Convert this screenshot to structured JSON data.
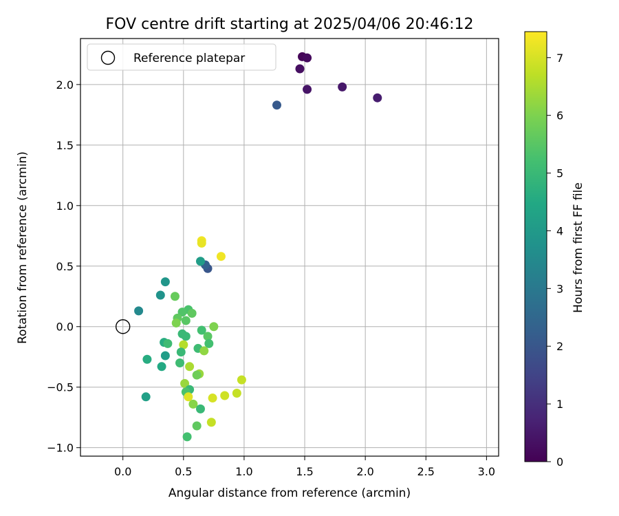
{
  "chart_data": {
    "type": "scatter",
    "title": "FOV centre drift starting at 2025/04/06 20:46:12",
    "xlabel": "Angular distance from reference (arcmin)",
    "ylabel": "Rotation from reference (arcmin)",
    "xlim": [
      -0.35,
      3.1
    ],
    "ylim": [
      -1.07,
      2.38
    ],
    "xticks": [
      0.0,
      0.5,
      1.0,
      1.5,
      2.0,
      2.5,
      3.0
    ],
    "xtick_labels": [
      "0.0",
      "0.5",
      "1.0",
      "1.5",
      "2.0",
      "2.5",
      "3.0"
    ],
    "yticks": [
      -1.0,
      -0.5,
      0.0,
      0.5,
      1.0,
      1.5,
      2.0
    ],
    "ytick_labels": [
      "−1.0",
      "−0.5",
      "0.0",
      "0.5",
      "1.0",
      "1.5",
      "2.0"
    ],
    "grid": true,
    "legend": {
      "placement": "top-left",
      "entries": [
        {
          "label": "Reference platepar",
          "marker": "open-circle",
          "x": 0.0,
          "y": 0.0
        }
      ]
    },
    "colorbar": {
      "label": "Hours from first FF file",
      "colormap": "viridis",
      "range": [
        0,
        7.45
      ],
      "ticks": [
        0,
        1,
        2,
        3,
        4,
        5,
        6,
        7
      ],
      "tick_labels": [
        "0",
        "1",
        "2",
        "3",
        "4",
        "5",
        "6",
        "7"
      ]
    },
    "points": [
      {
        "x": 1.48,
        "y": 2.23,
        "c": 0.1
      },
      {
        "x": 1.52,
        "y": 2.22,
        "c": 0.2
      },
      {
        "x": 1.46,
        "y": 2.13,
        "c": 0.3
      },
      {
        "x": 1.52,
        "y": 1.96,
        "c": 0.4
      },
      {
        "x": 1.81,
        "y": 1.98,
        "c": 0.5
      },
      {
        "x": 2.1,
        "y": 1.89,
        "c": 0.6
      },
      {
        "x": 1.27,
        "y": 1.83,
        "c": 2.1
      },
      {
        "x": 0.7,
        "y": 0.48,
        "c": 2.0
      },
      {
        "x": 0.68,
        "y": 0.51,
        "c": 2.3
      },
      {
        "x": 0.64,
        "y": 0.54,
        "c": 4.1
      },
      {
        "x": 0.65,
        "y": 0.71,
        "c": 7.3
      },
      {
        "x": 0.65,
        "y": 0.69,
        "c": 7.2
      },
      {
        "x": 0.81,
        "y": 0.58,
        "c": 7.3
      },
      {
        "x": 0.35,
        "y": 0.37,
        "c": 3.9
      },
      {
        "x": 0.31,
        "y": 0.26,
        "c": 3.8
      },
      {
        "x": 0.43,
        "y": 0.25,
        "c": 5.7
      },
      {
        "x": 0.13,
        "y": 0.13,
        "c": 3.5
      },
      {
        "x": 0.54,
        "y": 0.14,
        "c": 5.3
      },
      {
        "x": 0.49,
        "y": 0.12,
        "c": 5.4
      },
      {
        "x": 0.57,
        "y": 0.11,
        "c": 5.6
      },
      {
        "x": 0.45,
        "y": 0.07,
        "c": 5.6
      },
      {
        "x": 0.52,
        "y": 0.05,
        "c": 5.5
      },
      {
        "x": 0.44,
        "y": 0.03,
        "c": 6.0
      },
      {
        "x": 0.75,
        "y": 0.0,
        "c": 6.0
      },
      {
        "x": 0.65,
        "y": -0.03,
        "c": 5.2
      },
      {
        "x": 0.49,
        "y": -0.06,
        "c": 5.0
      },
      {
        "x": 0.52,
        "y": -0.08,
        "c": 5.0
      },
      {
        "x": 0.7,
        "y": -0.08,
        "c": 5.5
      },
      {
        "x": 0.34,
        "y": -0.13,
        "c": 4.6
      },
      {
        "x": 0.37,
        "y": -0.14,
        "c": 5.1
      },
      {
        "x": 0.71,
        "y": -0.14,
        "c": 5.2
      },
      {
        "x": 0.5,
        "y": -0.15,
        "c": 6.6
      },
      {
        "x": 0.62,
        "y": -0.18,
        "c": 5.1
      },
      {
        "x": 0.67,
        "y": -0.2,
        "c": 6.2
      },
      {
        "x": 0.48,
        "y": -0.21,
        "c": 5.0
      },
      {
        "x": 0.35,
        "y": -0.24,
        "c": 4.1
      },
      {
        "x": 0.2,
        "y": -0.27,
        "c": 4.6
      },
      {
        "x": 0.47,
        "y": -0.3,
        "c": 5.1
      },
      {
        "x": 0.32,
        "y": -0.33,
        "c": 4.5
      },
      {
        "x": 0.55,
        "y": -0.33,
        "c": 6.5
      },
      {
        "x": 0.63,
        "y": -0.39,
        "c": 6.3
      },
      {
        "x": 0.61,
        "y": -0.4,
        "c": 5.8
      },
      {
        "x": 0.98,
        "y": -0.44,
        "c": 6.8
      },
      {
        "x": 0.51,
        "y": -0.47,
        "c": 6.3
      },
      {
        "x": 0.55,
        "y": -0.52,
        "c": 5.0
      },
      {
        "x": 0.52,
        "y": -0.54,
        "c": 5.3
      },
      {
        "x": 0.94,
        "y": -0.55,
        "c": 6.8
      },
      {
        "x": 0.84,
        "y": -0.57,
        "c": 6.9
      },
      {
        "x": 0.19,
        "y": -0.58,
        "c": 4.2
      },
      {
        "x": 0.54,
        "y": -0.58,
        "c": 7.1
      },
      {
        "x": 0.74,
        "y": -0.59,
        "c": 7.0
      },
      {
        "x": 0.58,
        "y": -0.64,
        "c": 6.1
      },
      {
        "x": 0.64,
        "y": -0.68,
        "c": 5.0
      },
      {
        "x": 0.73,
        "y": -0.79,
        "c": 6.8
      },
      {
        "x": 0.61,
        "y": -0.82,
        "c": 5.6
      },
      {
        "x": 0.53,
        "y": -0.91,
        "c": 5.2
      }
    ]
  }
}
